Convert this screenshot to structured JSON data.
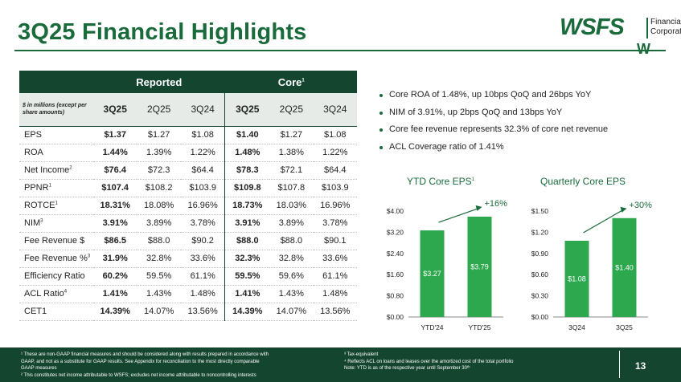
{
  "slide": {
    "title": "3Q25 Financial Highlights",
    "page_number": "13"
  },
  "logo": {
    "word": "WSFS",
    "line1": "Financial",
    "line2": "Corporation",
    "mark": "W"
  },
  "table": {
    "group_reported": "Reported",
    "group_core": "Core",
    "group_core_sup": "1",
    "units_label": "$ in millions (except per share amounts)",
    "columns": [
      "3Q25",
      "2Q25",
      "3Q24",
      "3Q25",
      "2Q25",
      "3Q24"
    ],
    "rows": [
      {
        "label": "EPS",
        "sup": "",
        "values": [
          "$1.37",
          "$1.27",
          "$1.08",
          "$1.40",
          "$1.27",
          "$1.08"
        ]
      },
      {
        "label": "ROA",
        "sup": "",
        "values": [
          "1.44%",
          "1.39%",
          "1.22%",
          "1.48%",
          "1.38%",
          "1.22%"
        ]
      },
      {
        "label": "Net Income",
        "sup": "2",
        "values": [
          "$76.4",
          "$72.3",
          "$64.4",
          "$78.3",
          "$72.1",
          "$64.4"
        ]
      },
      {
        "label": "PPNR",
        "sup": "1",
        "values": [
          "$107.4",
          "$108.2",
          "$103.9",
          "$109.8",
          "$107.8",
          "$103.9"
        ]
      },
      {
        "label": "ROTCE",
        "sup": "1",
        "values": [
          "18.31%",
          "18.08%",
          "16.96%",
          "18.73%",
          "18.03%",
          "16.96%"
        ]
      },
      {
        "label": "NIM",
        "sup": "3",
        "values": [
          "3.91%",
          "3.89%",
          "3.78%",
          "3.91%",
          "3.89%",
          "3.78%"
        ]
      },
      {
        "label": "Fee Revenue $",
        "sup": "",
        "values": [
          "$86.5",
          "$88.0",
          "$90.2",
          "$88.0",
          "$88.0",
          "$90.1"
        ]
      },
      {
        "label": "Fee Revenue %",
        "sup": "3",
        "values": [
          "31.9%",
          "32.8%",
          "33.6%",
          "32.3%",
          "32.8%",
          "33.6%"
        ]
      },
      {
        "label": "Efficiency Ratio",
        "sup": "",
        "values": [
          "60.2%",
          "59.5%",
          "61.1%",
          "59.5%",
          "59.6%",
          "61.1%"
        ]
      },
      {
        "label": "ACL Ratio",
        "sup": "4",
        "values": [
          "1.41%",
          "1.43%",
          "1.48%",
          "1.41%",
          "1.43%",
          "1.48%"
        ]
      },
      {
        "label": "CET1",
        "sup": "",
        "values": [
          "14.39%",
          "14.07%",
          "13.56%",
          "14.39%",
          "14.07%",
          "13.56%"
        ]
      }
    ]
  },
  "bullets": [
    "Core ROA of 1.48%, up 10bps QoQ and 26bps YoY",
    "NIM of 3.91%, up 2bps QoQ and 13bps YoY",
    "Core fee revenue represents 32.3% of core net revenue",
    "ACL Coverage ratio of 1.41%"
  ],
  "colors": {
    "brand_green": "#1a6b3b",
    "dark_green": "#14452f",
    "bar_green": "#2ea84e"
  },
  "chart_titles": {
    "ytd": "YTD Core EPS",
    "ytd_sup": "1",
    "quarterly": "Quarterly Core EPS"
  },
  "chart_data": [
    {
      "type": "bar",
      "title": "YTD Core EPS",
      "categories": [
        "YTD'24",
        "YTD'25"
      ],
      "values": [
        3.27,
        3.79
      ],
      "value_labels": [
        "$3.27",
        "$3.79"
      ],
      "ylim": [
        0,
        4
      ],
      "y_ticks": [
        "$0.00",
        "$0.80",
        "$1.60",
        "$2.40",
        "$3.20",
        "$4.00"
      ],
      "y_tick_values": [
        0,
        0.8,
        1.6,
        2.4,
        3.2,
        4.0
      ],
      "annotation": "+16%",
      "grid": false
    },
    {
      "type": "bar",
      "title": "Quarterly Core EPS",
      "categories": [
        "3Q24",
        "3Q25"
      ],
      "values": [
        1.08,
        1.4
      ],
      "value_labels": [
        "$1.08",
        "$1.40"
      ],
      "ylim": [
        0,
        1.5
      ],
      "y_ticks": [
        "$0.00",
        "$0.30",
        "$0.60",
        "$0.90",
        "$1.20",
        "$1.50"
      ],
      "y_tick_values": [
        0,
        0.3,
        0.6,
        0.9,
        1.2,
        1.5
      ],
      "annotation": "+30%",
      "grid": false
    }
  ],
  "footnotes": {
    "left": [
      "¹ These are non-GAAP financial measures and should be considered along with results prepared in accordance with",
      "GAAP, and not as a substitute for GAAP results. See Appendix for reconciliation to the most directly comparable",
      "GAAP measures",
      "² This constitutes net income attributable to WSFS; excludes net income attributable to noncontrolling interests"
    ],
    "right": [
      "³ Tax-equivalent",
      "⁴ Reflects ACL on loans and leases over the amortized cost of the total portfolio",
      "Note: YTD is as of the respective year until September 30ᵗʰ"
    ]
  }
}
